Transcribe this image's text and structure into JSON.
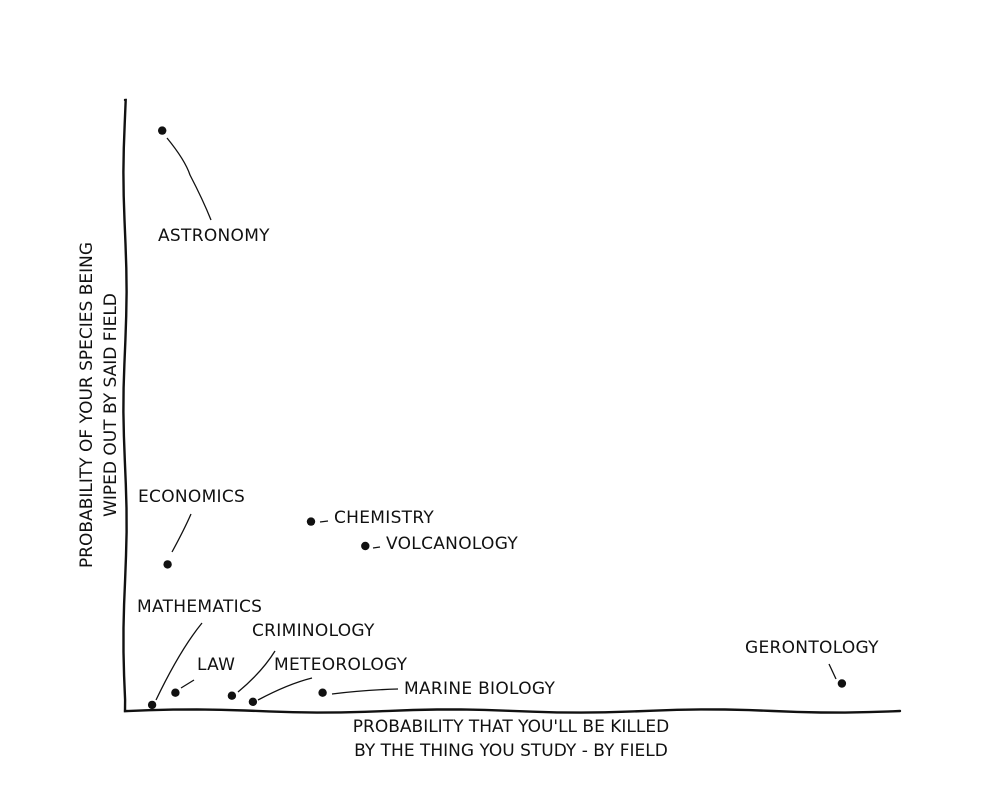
{
  "chart_data": {
    "type": "scatter",
    "xlabel": [
      "PROBABILITY THAT YOU'LL BE KILLED",
      "BY THE THING YOU STUDY - BY FIELD"
    ],
    "ylabel": [
      "PROBABILITY OF YOUR SPECIES BEING",
      "WIPED OUT BY SAID FIELD"
    ],
    "xlim": [
      0,
      1
    ],
    "ylim": [
      0,
      1
    ],
    "grid": false,
    "points": [
      {
        "label": "ASTRONOMY",
        "x": 0.048,
        "y": 0.95
      },
      {
        "label": "ECONOMICS",
        "x": 0.055,
        "y": 0.24
      },
      {
        "label": "CHEMISTRY",
        "x": 0.24,
        "y": 0.31
      },
      {
        "label": "VOLCANOLOGY",
        "x": 0.31,
        "y": 0.27
      },
      {
        "label": "MATHEMATICS",
        "x": 0.035,
        "y": 0.01
      },
      {
        "label": "LAW",
        "x": 0.065,
        "y": 0.03
      },
      {
        "label": "CRIMINOLOGY",
        "x": 0.138,
        "y": 0.025
      },
      {
        "label": "METEOROLOGY",
        "x": 0.165,
        "y": 0.015
      },
      {
        "label": "MARINE BIOLOGY",
        "x": 0.255,
        "y": 0.03
      },
      {
        "label": "GERONTOLOGY",
        "x": 0.925,
        "y": 0.045
      }
    ]
  }
}
